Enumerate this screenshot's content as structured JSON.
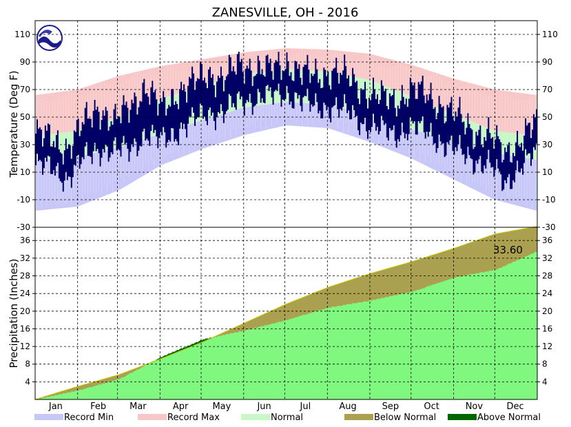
{
  "chart_data": {
    "type": "area",
    "title": "ZANESVILLE, OH - 2016",
    "months": [
      "Jan",
      "Feb",
      "Mar",
      "Apr",
      "May",
      "Jun",
      "Jul",
      "Aug",
      "Sep",
      "Oct",
      "Nov",
      "Dec"
    ],
    "temperature": {
      "ylabel": "Temperature (Deg F)",
      "ylim": [
        -30,
        120
      ],
      "ticks": [
        110,
        90,
        70,
        50,
        30,
        10,
        -10,
        -30
      ],
      "normal_high": [
        36,
        40,
        50,
        63,
        73,
        81,
        85,
        83,
        77,
        65,
        52,
        40,
        36
      ],
      "normal_low": [
        19,
        21,
        28,
        38,
        48,
        57,
        61,
        59,
        52,
        41,
        33,
        24,
        19
      ],
      "record_max": [
        66,
        70,
        80,
        87,
        92,
        97,
        100,
        99,
        96,
        88,
        78,
        70,
        66
      ],
      "record_min": [
        -18,
        -15,
        -3,
        15,
        27,
        37,
        44,
        42,
        32,
        20,
        5,
        -10,
        -18
      ],
      "observed_high": [
        38,
        34,
        28,
        44,
        58,
        46,
        58,
        72,
        56,
        68,
        74,
        82,
        78,
        88,
        86,
        84,
        90,
        82,
        80,
        84,
        78,
        70,
        64,
        62,
        70,
        66,
        58,
        50,
        40,
        36,
        24,
        34,
        46
      ],
      "observed_low": [
        18,
        16,
        8,
        22,
        30,
        28,
        30,
        40,
        36,
        42,
        50,
        56,
        56,
        64,
        66,
        68,
        70,
        64,
        60,
        60,
        56,
        48,
        44,
        40,
        46,
        42,
        34,
        28,
        22,
        18,
        4,
        18,
        26
      ]
    },
    "precipitation": {
      "ylabel": "Precipitation (Inches)",
      "ylim": [
        0,
        39
      ],
      "ticks": [
        36,
        32,
        28,
        24,
        20,
        16,
        12,
        8,
        4
      ],
      "annotation": "33.60",
      "normal_cumulative": [
        0,
        2.9,
        5.6,
        9.2,
        13.0,
        17.3,
        21.6,
        25.4,
        28.5,
        31.2,
        34.2,
        37.5,
        39.2
      ],
      "observed_cumulative": [
        0,
        2.0,
        4.6,
        9.6,
        13.6,
        15.6,
        18.0,
        20.8,
        22.4,
        24.4,
        27.6,
        29.4,
        33.6
      ]
    },
    "legend": [
      {
        "label": "Record Min",
        "color": "#c8c8f8"
      },
      {
        "label": "Record Max",
        "color": "#f8c8c8"
      },
      {
        "label": "Normal",
        "color": "#c8f8c8"
      },
      {
        "label": "Below Normal",
        "color": "#aaa050"
      },
      {
        "label": "Above Normal",
        "color": "#006600"
      }
    ],
    "colors": {
      "observed": "#000066",
      "precip_fill": "#80f880",
      "below_normal": "#aaa050",
      "above_normal": "#006600"
    }
  }
}
